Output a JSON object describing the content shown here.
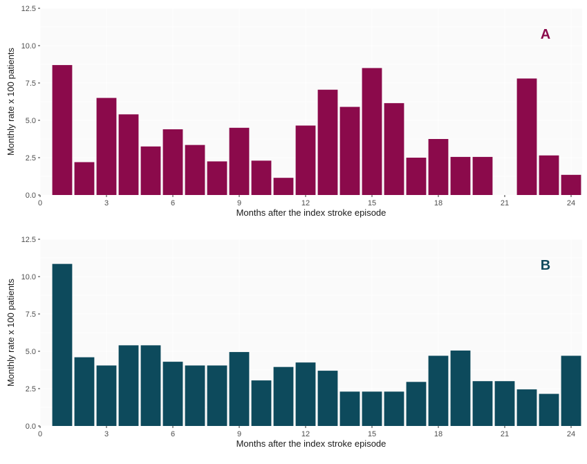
{
  "chart_data": [
    {
      "type": "bar",
      "panel_label": "A",
      "color": "#8b0a4b",
      "xlabel": "Months after the index stroke episode",
      "ylabel": "Monthly rate x 100 patients",
      "xlim": [
        0,
        24.5
      ],
      "ylim": [
        0,
        12.5
      ],
      "x_ticks": [
        {
          "value": 0,
          "label": "0"
        },
        {
          "value": 3,
          "label": "3"
        },
        {
          "value": 6,
          "label": "6"
        },
        {
          "value": 9,
          "label": "9"
        },
        {
          "value": 12,
          "label": "12"
        },
        {
          "value": 15,
          "label": "15"
        },
        {
          "value": 18,
          "label": "18"
        },
        {
          "value": 21,
          "label": "21"
        },
        {
          "value": 24,
          "label": "24"
        }
      ],
      "y_ticks": [
        {
          "value": 0,
          "label": "0.0"
        },
        {
          "value": 2.5,
          "label": "2.5"
        },
        {
          "value": 5,
          "label": "5.0"
        },
        {
          "value": 7.5,
          "label": "7.5"
        },
        {
          "value": 10,
          "label": "10.0"
        },
        {
          "value": 12.5,
          "label": "12.5"
        }
      ],
      "x": [
        1,
        2,
        3,
        4,
        5,
        6,
        7,
        8,
        9,
        10,
        11,
        12,
        13,
        14,
        15,
        16,
        17,
        18,
        19,
        20,
        21,
        22,
        23,
        24
      ],
      "values": [
        8.7,
        2.2,
        6.5,
        5.4,
        3.25,
        4.4,
        3.35,
        2.25,
        4.5,
        2.3,
        1.15,
        4.65,
        7.05,
        5.9,
        8.5,
        6.15,
        2.5,
        3.75,
        2.55,
        2.55,
        0,
        7.8,
        2.65,
        1.35
      ]
    },
    {
      "type": "bar",
      "panel_label": "B",
      "color": "#0d4a5c",
      "xlabel": "Months after the index stroke episode",
      "ylabel": "Monthly rate x 100 patients",
      "xlim": [
        0,
        24.5
      ],
      "ylim": [
        0,
        12.5
      ],
      "x_ticks": [
        {
          "value": 0,
          "label": "0"
        },
        {
          "value": 3,
          "label": "3"
        },
        {
          "value": 6,
          "label": "6"
        },
        {
          "value": 9,
          "label": "9"
        },
        {
          "value": 12,
          "label": "12"
        },
        {
          "value": 15,
          "label": "15"
        },
        {
          "value": 18,
          "label": "18"
        },
        {
          "value": 21,
          "label": "21"
        },
        {
          "value": 24,
          "label": "24"
        }
      ],
      "y_ticks": [
        {
          "value": 0,
          "label": "0.0"
        },
        {
          "value": 2.5,
          "label": "2.5"
        },
        {
          "value": 5,
          "label": "5.0"
        },
        {
          "value": 7.5,
          "label": "7.5"
        },
        {
          "value": 10,
          "label": "10.0"
        },
        {
          "value": 12.5,
          "label": "12.5"
        }
      ],
      "x": [
        1,
        2,
        3,
        4,
        5,
        6,
        7,
        8,
        9,
        10,
        11,
        12,
        13,
        14,
        15,
        16,
        17,
        18,
        19,
        20,
        21,
        22,
        23,
        24
      ],
      "values": [
        10.85,
        4.6,
        4.05,
        5.4,
        5.4,
        4.3,
        4.05,
        4.05,
        4.95,
        3.05,
        3.95,
        4.25,
        3.7,
        2.3,
        2.3,
        2.3,
        2.95,
        4.7,
        5.05,
        3.0,
        3.0,
        2.45,
        2.15,
        4.7
      ]
    }
  ]
}
